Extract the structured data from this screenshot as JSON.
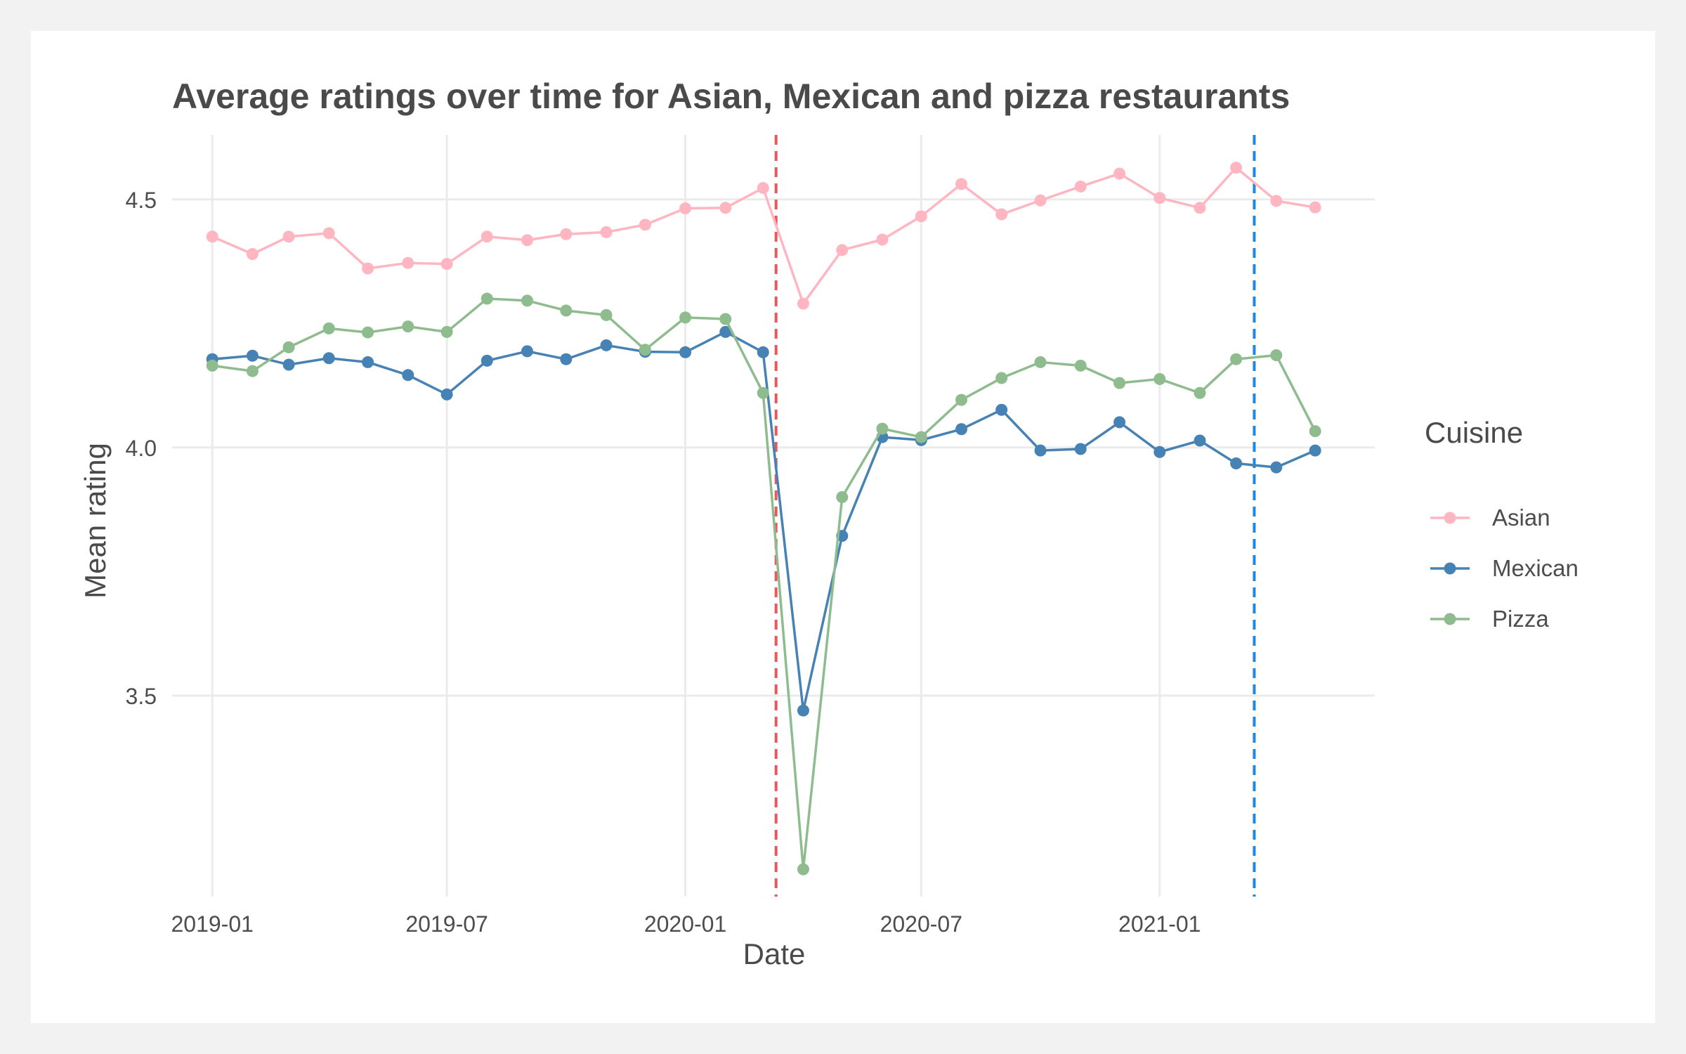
{
  "chart_data": {
    "type": "line",
    "title": "Average ratings over time for Asian, Mexican and pizza restaurants",
    "xlabel": "Date",
    "ylabel": "Mean rating",
    "x": [
      "2019-01",
      "2019-02",
      "2019-03",
      "2019-04",
      "2019-05",
      "2019-06",
      "2019-07",
      "2019-08",
      "2019-09",
      "2019-10",
      "2019-11",
      "2019-12",
      "2020-01",
      "2020-02",
      "2020-03",
      "2020-04",
      "2020-05",
      "2020-06",
      "2020-07",
      "2020-08",
      "2020-09",
      "2020-10",
      "2020-11",
      "2020-12",
      "2021-01",
      "2021-02",
      "2021-03",
      "2021-04",
      "2021-05"
    ],
    "x_ticks": [
      "2019-01",
      "2019-07",
      "2020-01",
      "2020-07",
      "2021-01"
    ],
    "y_ticks": [
      3.5,
      4.0,
      4.5
    ],
    "y_tick_labels": [
      "3.5",
      "4.0",
      "4.5"
    ],
    "ylim": [
      3.095,
      4.63
    ],
    "xlim": [
      "2018-12-01",
      "2021-06-16"
    ],
    "grid": true,
    "legend": {
      "title": "Cuisine",
      "placement": "right"
    },
    "reference_lines": [
      {
        "x": "2020-03-11",
        "color": "#e8595a",
        "style": "dashed"
      },
      {
        "x": "2021-03-15",
        "color": "#1e88e5",
        "style": "dashed"
      }
    ],
    "series": [
      {
        "name": "Asian",
        "color": "#ffb6c1",
        "values": [
          4.425,
          4.39,
          4.425,
          4.432,
          4.361,
          4.372,
          4.37,
          4.425,
          4.418,
          4.43,
          4.434,
          4.449,
          4.482,
          4.483,
          4.523,
          4.29,
          4.398,
          4.419,
          4.466,
          4.531,
          4.47,
          4.498,
          4.526,
          4.552,
          4.503,
          4.483,
          4.564,
          4.497,
          4.484
        ]
      },
      {
        "name": "Mexican",
        "color": "#4682b4",
        "values": [
          4.178,
          4.185,
          4.167,
          4.18,
          4.172,
          4.146,
          4.107,
          4.175,
          4.194,
          4.178,
          4.206,
          4.193,
          4.192,
          4.233,
          4.192,
          3.47,
          3.822,
          4.021,
          4.015,
          4.037,
          4.076,
          3.994,
          3.997,
          4.051,
          3.991,
          4.014,
          3.968,
          3.96,
          3.994
        ]
      },
      {
        "name": "Pizza",
        "color": "#8fbc8f",
        "values": [
          4.165,
          4.154,
          4.202,
          4.24,
          4.232,
          4.244,
          4.233,
          4.3,
          4.296,
          4.276,
          4.267,
          4.197,
          4.262,
          4.259,
          4.11,
          3.15,
          3.9,
          4.038,
          4.021,
          4.096,
          4.14,
          4.172,
          4.165,
          4.13,
          4.138,
          4.11,
          4.178,
          4.186,
          4.033
        ]
      }
    ]
  }
}
